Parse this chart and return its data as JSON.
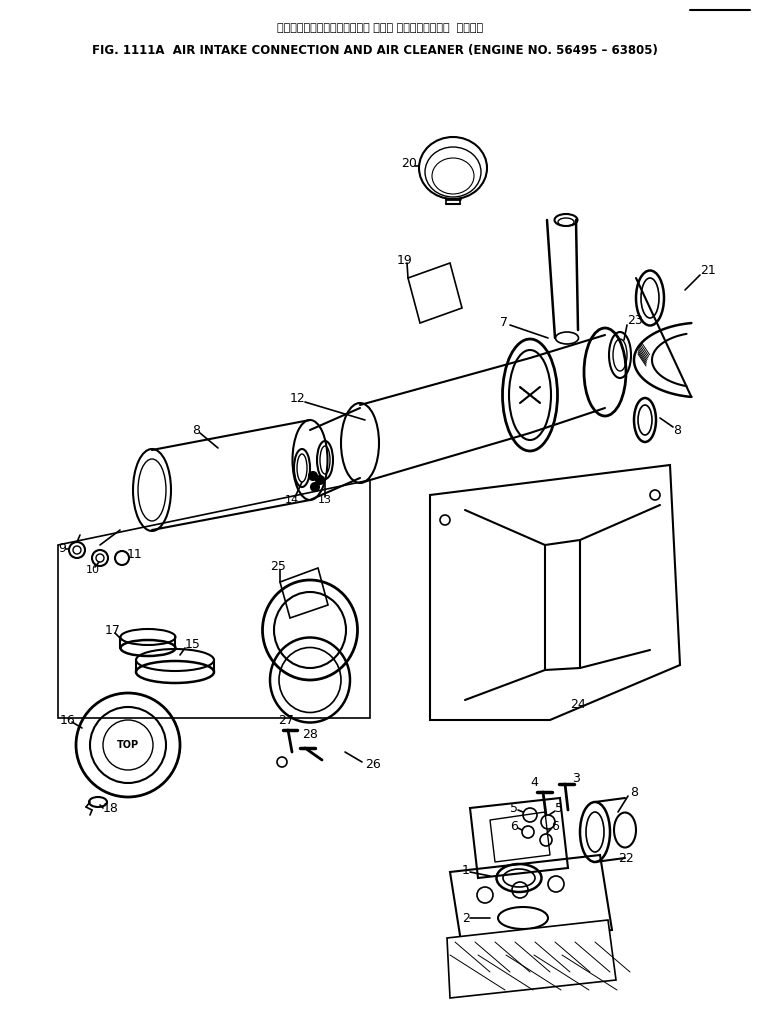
{
  "title_jp": "エアーインテークコネクション および エアークリーナー  適用号機",
  "title_en": "FIG. 1111A  AIR INTAKE CONNECTION AND AIR CLEANER (ENGINE NO. 56495 – 63805)",
  "bg_color": "#ffffff",
  "line_color": "#000000",
  "fig_width": 7.57,
  "fig_height": 10.14,
  "dpi": 100
}
